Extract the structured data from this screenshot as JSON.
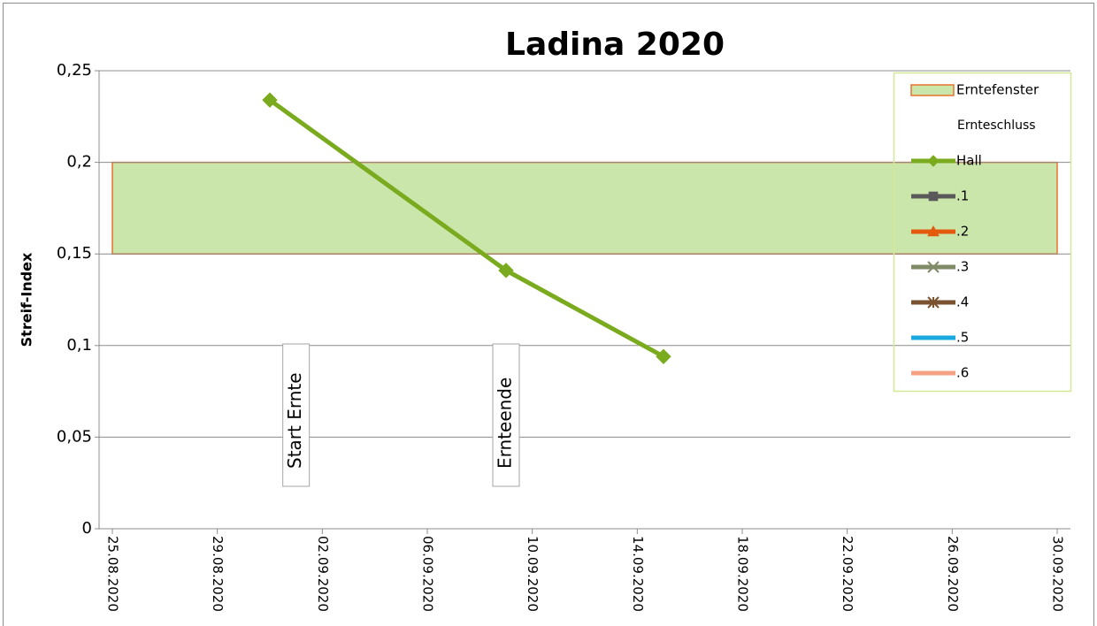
{
  "chart_data": {
    "type": "line",
    "title": "Ladina 2020",
    "y_label": "Streif-Index",
    "xlim": [
      "25.08.2020",
      "30.09.2020"
    ],
    "xticks": [
      "25.08.2020",
      "29.08.2020",
      "02.09.2020",
      "06.09.2020",
      "10.09.2020",
      "14.09.2020",
      "18.09.2020",
      "22.09.2020",
      "26.09.2020",
      "30.09.2020"
    ],
    "ylim": [
      0,
      0.25
    ],
    "yticks": [
      0,
      {
        "value": 0.05,
        "label": "0,05"
      },
      {
        "value": 0.1,
        "label": "0,1"
      },
      {
        "value": 0.15,
        "label": "0,15"
      },
      {
        "value": 0.2,
        "label": "0,2"
      },
      {
        "value": 0.25,
        "label": "0,25"
      }
    ],
    "grid": true,
    "band": {
      "name": "Erntefenster",
      "x": [
        "25.08.2020",
        "30.09.2020"
      ],
      "low": 0.15,
      "high": 0.2,
      "color": "#cbe6ab",
      "edge": "#e8742c"
    },
    "series": [
      {
        "name": "Ernteschluss",
        "values": []
      },
      {
        "name": "Hall",
        "color": "#7aab1e",
        "marker": "diamond",
        "x": [
          "31.08.2020",
          "09.09.2020",
          "15.09.2020"
        ],
        "values": [
          0.234,
          0.141,
          0.094
        ]
      },
      {
        "name": ".1",
        "color": "#595959",
        "marker": "square",
        "values": []
      },
      {
        "name": ".2",
        "color": "#e35a0e",
        "marker": "triangle",
        "values": []
      },
      {
        "name": ".3",
        "color": "#7f8a66",
        "marker": "x",
        "values": []
      },
      {
        "name": ".4",
        "color": "#7a5230",
        "marker": "star",
        "values": []
      },
      {
        "name": ".5",
        "color": "#19a9e0",
        "values": []
      },
      {
        "name": ".6",
        "color": "#f4a184",
        "values": []
      }
    ],
    "annotations": [
      {
        "text": "Start Ernte",
        "x": "01.09.2020"
      },
      {
        "text": "Ernteende",
        "x": "09.09.2020"
      }
    ],
    "legend": "top-right"
  }
}
